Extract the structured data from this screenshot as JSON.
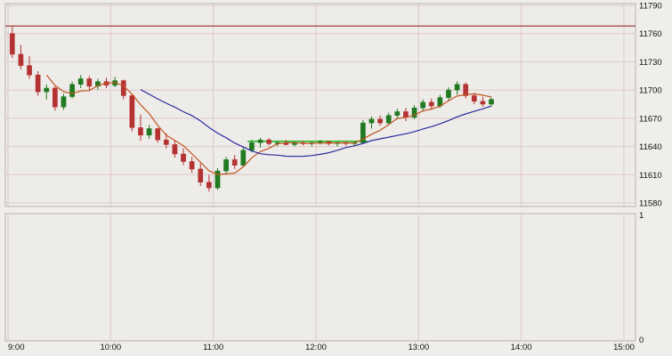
{
  "window": {
    "background": "#f0eeeb"
  },
  "chart_data": {
    "type": "candlestick",
    "title": "",
    "xlabel": "",
    "ylabel": "",
    "x_axis": {
      "ticks": [
        "9:00",
        "10:00",
        "11:00",
        "12:00",
        "13:00",
        "14:00",
        "15:00"
      ],
      "start": "9:00",
      "end": "15:00",
      "interval_minutes": 5
    },
    "y_axis": {
      "ticks": [
        "11790",
        "11760",
        "11730",
        "11700",
        "11670",
        "11640",
        "11610",
        "11580"
      ],
      "min": 11580,
      "max": 11790,
      "position": "right",
      "grid": true
    },
    "candles": [
      [
        "9:00",
        11760,
        11768,
        11734,
        11738
      ],
      [
        "9:05",
        11738,
        11748,
        11722,
        11726
      ],
      [
        "9:10",
        11726,
        11736,
        11712,
        11716
      ],
      [
        "9:15",
        11716,
        11720,
        11694,
        11698
      ],
      [
        "9:20",
        11698,
        11706,
        11690,
        11702
      ],
      [
        "9:25",
        11702,
        11704,
        11678,
        11682
      ],
      [
        "9:30",
        11682,
        11696,
        11679,
        11693
      ],
      [
        "9:35",
        11693,
        11709,
        11691,
        11706
      ],
      [
        "9:40",
        11706,
        11716,
        11702,
        11712
      ],
      [
        "9:45",
        11712,
        11715,
        11700,
        11704
      ],
      [
        "9:50",
        11704,
        11712,
        11700,
        11709
      ],
      [
        "9:55",
        11709,
        11713,
        11702,
        11705
      ],
      [
        "10:00",
        11705,
        11714,
        11703,
        11710
      ],
      [
        "10:05",
        11710,
        11711,
        11690,
        11694
      ],
      [
        "10:10",
        11694,
        11696,
        11656,
        11660
      ],
      [
        "10:15",
        11660,
        11674,
        11646,
        11652
      ],
      [
        "10:20",
        11652,
        11663,
        11648,
        11659
      ],
      [
        "10:25",
        11659,
        11660,
        11644,
        11647
      ],
      [
        "10:30",
        11647,
        11654,
        11638,
        11642
      ],
      [
        "10:35",
        11642,
        11647,
        11628,
        11632
      ],
      [
        "10:40",
        11632,
        11638,
        11620,
        11624
      ],
      [
        "10:45",
        11624,
        11629,
        11612,
        11616
      ],
      [
        "10:50",
        11616,
        11622,
        11598,
        11602
      ],
      [
        "10:55",
        11602,
        11610,
        11592,
        11596
      ],
      [
        "11:00",
        11596,
        11617,
        11594,
        11614
      ],
      [
        "11:05",
        11614,
        11629,
        11610,
        11626
      ],
      [
        "11:10",
        11626,
        11631,
        11616,
        11620
      ],
      [
        "11:15",
        11620,
        11639,
        11618,
        11636
      ],
      [
        "11:20",
        11636,
        11647,
        11634,
        11644
      ],
      [
        "11:25",
        11644,
        11649,
        11639,
        11647
      ],
      [
        "11:30",
        11647,
        11649,
        11641,
        11643
      ],
      [
        "11:35",
        11643,
        11646,
        11640,
        11644
      ],
      [
        "11:40",
        11644,
        11647,
        11641,
        11642
      ],
      [
        "11:45",
        11642,
        11645,
        11640,
        11644
      ],
      [
        "11:50",
        11644,
        11646,
        11641,
        11643
      ],
      [
        "11:55",
        11643,
        11645,
        11640,
        11644
      ],
      [
        "12:00",
        11644,
        11647,
        11642,
        11645
      ],
      [
        "12:05",
        11645,
        11646,
        11641,
        11643
      ],
      [
        "12:10",
        11643,
        11645,
        11640,
        11644
      ],
      [
        "12:15",
        11644,
        11646,
        11641,
        11643
      ],
      [
        "12:20",
        11643,
        11645,
        11641,
        11644
      ],
      [
        "12:25",
        11644,
        11668,
        11643,
        11665
      ],
      [
        "12:30",
        11665,
        11672,
        11659,
        11669
      ],
      [
        "12:35",
        11669,
        11673,
        11662,
        11665
      ],
      [
        "12:40",
        11665,
        11676,
        11663,
        11673
      ],
      [
        "12:45",
        11673,
        11680,
        11669,
        11677
      ],
      [
        "12:50",
        11677,
        11681,
        11667,
        11671
      ],
      [
        "12:55",
        11671,
        11684,
        11669,
        11681
      ],
      [
        "13:00",
        11681,
        11690,
        11677,
        11687
      ],
      [
        "13:05",
        11687,
        11691,
        11679,
        11683
      ],
      [
        "13:10",
        11683,
        11695,
        11681,
        11692
      ],
      [
        "13:15",
        11692,
        11703,
        11689,
        11700
      ],
      [
        "13:20",
        11700,
        11709,
        11695,
        11706
      ],
      [
        "13:25",
        11706,
        11708,
        11691,
        11694
      ],
      [
        "13:30",
        11694,
        11697,
        11685,
        11688
      ],
      [
        "13:35",
        11688,
        11693,
        11682,
        11685
      ],
      [
        "13:40",
        11685,
        11692,
        11683,
        11690
      ]
    ],
    "overlays": [
      {
        "name": "fast-ma-line",
        "type": "sma",
        "period": 5,
        "color": "#c25520"
      },
      {
        "name": "slow-ma-line",
        "type": "sma",
        "period": 16,
        "color": "#2a2a9e"
      },
      {
        "name": "resistance-line",
        "type": "hline",
        "value": 11768,
        "color": "#a04040"
      },
      {
        "name": "flat-signal-line",
        "type": "hline_segment",
        "value": 11645.5,
        "from": "11:20",
        "to": "12:30",
        "color": "#1db51d"
      }
    ],
    "sub_panel": {
      "y_ticks": [
        "1",
        "0"
      ],
      "values": []
    },
    "colors": {
      "up": "#217a21",
      "down": "#b43232",
      "background": "#eeece9",
      "grid": "#ddc8c8",
      "border": "#b8b2ae",
      "text": "#111111"
    },
    "legend": {
      "visible": false
    }
  }
}
